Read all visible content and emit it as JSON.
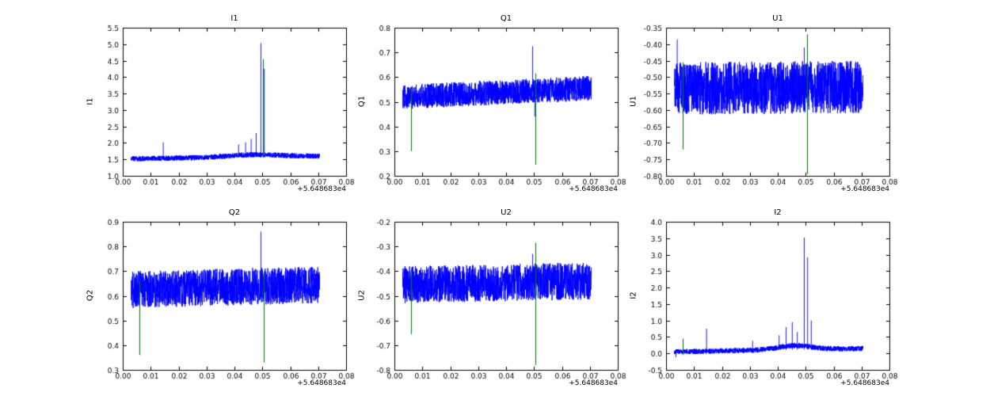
{
  "figure": {
    "background": "#ffffff",
    "plot_background": "#ffffff",
    "axis_color": "#000000",
    "series_color": "#0000ff",
    "flag_color": "#008000"
  },
  "chart_data": [
    {
      "type": "line",
      "title": "I1",
      "ylabel": "I1",
      "x_offset_label": "+5.648683e4",
      "xlim": [
        0,
        0.08
      ],
      "ylim": [
        1.0,
        5.5
      ],
      "xtick_values": [
        0,
        0.01,
        0.02,
        0.03,
        0.04,
        0.05,
        0.06,
        0.07,
        0.08
      ],
      "xtick_labels": [
        "0.00",
        "0.01",
        "0.02",
        "0.03",
        "0.04",
        "0.05",
        "0.06",
        "0.07",
        "0.08"
      ],
      "ytick_values": [
        1.0,
        1.5,
        2.0,
        2.5,
        3.0,
        3.5,
        4.0,
        4.5,
        5.0,
        5.5
      ],
      "ytick_labels": [
        "1.0",
        "1.5",
        "2.0",
        "2.5",
        "3.0",
        "3.5",
        "4.0",
        "4.5",
        "5.0",
        "5.5"
      ],
      "seed": 3,
      "signal": {
        "x_start": 0.003,
        "x_end": 0.0705,
        "base_start": 1.52,
        "base_end": 1.6,
        "noise": 0.08,
        "bump": {
          "center": 0.047,
          "width": 0.009,
          "height": 0.07
        },
        "spikes": [
          {
            "x": 0.0145,
            "y": 2.02
          },
          {
            "x": 0.0415,
            "y": 1.95
          },
          {
            "x": 0.044,
            "y": 2.02
          },
          {
            "x": 0.046,
            "y": 2.12
          },
          {
            "x": 0.0478,
            "y": 2.3
          },
          {
            "x": 0.0495,
            "y": 5.03
          },
          {
            "x": 0.0507,
            "y": 4.25
          }
        ]
      },
      "flags": [
        {
          "x": 0.0502,
          "y1": 1.6,
          "y2": 4.55
        }
      ]
    },
    {
      "type": "line",
      "title": "Q1",
      "ylabel": "Q1",
      "x_offset_label": "+5.648683e4",
      "xlim": [
        0,
        0.08
      ],
      "ylim": [
        0.2,
        0.8
      ],
      "xtick_values": [
        0,
        0.01,
        0.02,
        0.03,
        0.04,
        0.05,
        0.06,
        0.07,
        0.08
      ],
      "xtick_labels": [
        "0.00",
        "0.01",
        "0.02",
        "0.03",
        "0.04",
        "0.05",
        "0.06",
        "0.07",
        "0.08"
      ],
      "ytick_values": [
        0.2,
        0.3,
        0.4,
        0.5,
        0.6,
        0.7,
        0.8
      ],
      "ytick_labels": [
        "0.2",
        "0.3",
        "0.4",
        "0.5",
        "0.6",
        "0.7",
        "0.8"
      ],
      "seed": 5,
      "signal": {
        "x_start": 0.003,
        "x_end": 0.0705,
        "base_start": 0.52,
        "base_end": 0.555,
        "noise": 0.05,
        "spikes": [
          {
            "x": 0.0495,
            "y": 0.725
          },
          {
            "x": 0.0503,
            "y": 0.44
          }
        ]
      },
      "flags": [
        {
          "x": 0.006,
          "y1": 0.3,
          "y2": 0.555
        },
        {
          "x": 0.0505,
          "y1": 0.245,
          "y2": 0.615
        }
      ]
    },
    {
      "type": "line",
      "title": "U1",
      "ylabel": "U1",
      "x_offset_label": "+5.648683e4",
      "xlim": [
        0,
        0.08
      ],
      "ylim": [
        -0.8,
        -0.35
      ],
      "xtick_values": [
        0,
        0.01,
        0.02,
        0.03,
        0.04,
        0.05,
        0.06,
        0.07,
        0.08
      ],
      "xtick_labels": [
        "0.00",
        "0.01",
        "0.02",
        "0.03",
        "0.04",
        "0.05",
        "0.06",
        "0.07",
        "0.08"
      ],
      "ytick_values": [
        -0.8,
        -0.75,
        -0.7,
        -0.65,
        -0.6,
        -0.55,
        -0.5,
        -0.45,
        -0.4,
        -0.35
      ],
      "ytick_labels": [
        "-0.80",
        "-0.75",
        "-0.70",
        "-0.65",
        "-0.60",
        "-0.55",
        "-0.50",
        "-0.45",
        "-0.40",
        "-0.35"
      ],
      "seed": 7,
      "signal": {
        "x_start": 0.003,
        "x_end": 0.0705,
        "base_start": -0.535,
        "base_end": -0.53,
        "noise": 0.08,
        "spikes": [
          {
            "x": 0.004,
            "y": -0.385
          },
          {
            "x": 0.0495,
            "y": -0.41
          }
        ]
      },
      "flags": [
        {
          "x": 0.006,
          "y1": -0.72,
          "y2": -0.455
        },
        {
          "x": 0.0505,
          "y1": -0.795,
          "y2": -0.37
        }
      ]
    },
    {
      "type": "line",
      "title": "Q2",
      "ylabel": "Q2",
      "x_offset_label": "+5.648683e4",
      "xlim": [
        0,
        0.08
      ],
      "ylim": [
        0.3,
        0.9
      ],
      "xtick_values": [
        0,
        0.01,
        0.02,
        0.03,
        0.04,
        0.05,
        0.06,
        0.07,
        0.08
      ],
      "xtick_labels": [
        "0.00",
        "0.01",
        "0.02",
        "0.03",
        "0.04",
        "0.05",
        "0.06",
        "0.07",
        "0.08"
      ],
      "ytick_values": [
        0.3,
        0.4,
        0.5,
        0.6,
        0.7,
        0.8,
        0.9
      ],
      "ytick_labels": [
        "0.3",
        "0.4",
        "0.5",
        "0.6",
        "0.7",
        "0.8",
        "0.9"
      ],
      "seed": 11,
      "signal": {
        "x_start": 0.003,
        "x_end": 0.0705,
        "base_start": 0.625,
        "base_end": 0.645,
        "noise": 0.075,
        "spikes": [
          {
            "x": 0.0495,
            "y": 0.86
          }
        ]
      },
      "flags": [
        {
          "x": 0.006,
          "y1": 0.36,
          "y2": 0.66
        },
        {
          "x": 0.0505,
          "y1": 0.33,
          "y2": 0.7
        }
      ]
    },
    {
      "type": "line",
      "title": "U2",
      "ylabel": "U2",
      "x_offset_label": "+5.648683e4",
      "xlim": [
        0,
        0.08
      ],
      "ylim": [
        -0.8,
        -0.2
      ],
      "xtick_values": [
        0,
        0.01,
        0.02,
        0.03,
        0.04,
        0.05,
        0.06,
        0.07,
        0.08
      ],
      "xtick_labels": [
        "0.00",
        "0.01",
        "0.02",
        "0.03",
        "0.04",
        "0.05",
        "0.06",
        "0.07",
        "0.08"
      ],
      "ytick_values": [
        -0.8,
        -0.7,
        -0.6,
        -0.5,
        -0.4,
        -0.3,
        -0.2
      ],
      "ytick_labels": [
        "-0.8",
        "-0.7",
        "-0.6",
        "-0.5",
        "-0.4",
        "-0.3",
        "-0.2"
      ],
      "seed": 13,
      "signal": {
        "x_start": 0.003,
        "x_end": 0.0705,
        "base_start": -0.455,
        "base_end": -0.44,
        "noise": 0.075,
        "spikes": [
          {
            "x": 0.0495,
            "y": -0.33
          }
        ]
      },
      "flags": [
        {
          "x": 0.006,
          "y1": -0.655,
          "y2": -0.4
        },
        {
          "x": 0.0505,
          "y1": -0.78,
          "y2": -0.285
        }
      ]
    },
    {
      "type": "line",
      "title": "I2",
      "ylabel": "I2",
      "x_offset_label": "+5.648683e4",
      "xlim": [
        0,
        0.08
      ],
      "ylim": [
        -0.5,
        4.0
      ],
      "xtick_values": [
        0,
        0.01,
        0.02,
        0.03,
        0.04,
        0.05,
        0.06,
        0.07,
        0.08
      ],
      "xtick_labels": [
        "0.00",
        "0.01",
        "0.02",
        "0.03",
        "0.04",
        "0.05",
        "0.06",
        "0.07",
        "0.08"
      ],
      "ytick_values": [
        -0.5,
        0.0,
        0.5,
        1.0,
        1.5,
        2.0,
        2.5,
        3.0,
        3.5,
        4.0
      ],
      "ytick_labels": [
        "-0.5",
        "0.0",
        "0.5",
        "1.0",
        "1.5",
        "2.0",
        "2.5",
        "3.0",
        "3.5",
        "4.0"
      ],
      "seed": 17,
      "signal": {
        "x_start": 0.003,
        "x_end": 0.0705,
        "base_start": 0.05,
        "base_end": 0.15,
        "noise": 0.08,
        "bump": {
          "center": 0.046,
          "width": 0.006,
          "height": 0.12
        },
        "spikes": [
          {
            "x": 0.0035,
            "y": -0.12
          },
          {
            "x": 0.0145,
            "y": 0.75
          },
          {
            "x": 0.031,
            "y": 0.38
          },
          {
            "x": 0.0405,
            "y": 0.55
          },
          {
            "x": 0.043,
            "y": 0.8
          },
          {
            "x": 0.0452,
            "y": 0.95
          },
          {
            "x": 0.047,
            "y": 0.65
          },
          {
            "x": 0.0495,
            "y": 3.52
          },
          {
            "x": 0.0507,
            "y": 2.92
          },
          {
            "x": 0.052,
            "y": 1.0
          }
        ]
      },
      "flags": [
        {
          "x": 0.006,
          "y1": -0.05,
          "y2": 0.45
        }
      ]
    }
  ]
}
